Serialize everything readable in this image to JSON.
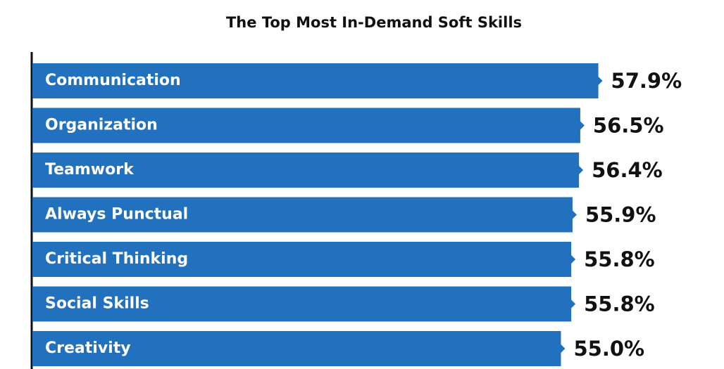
{
  "chart_data": {
    "type": "hbar",
    "title": "The Top Most In-Demand Soft Skills",
    "categories": [
      "Communication",
      "Organization",
      "Teamwork",
      "Always Punctual",
      "Critical Thinking",
      "Social Skills",
      "Creativity"
    ],
    "values": [
      57.9,
      56.5,
      56.4,
      55.9,
      55.8,
      55.8,
      55.0
    ],
    "value_labels": [
      "57.9%",
      "56.5%",
      "56.4%",
      "55.9%",
      "55.8%",
      "55.8%",
      "55.0%"
    ],
    "color": "#2271be",
    "xlim": [
      14,
      60
    ]
  }
}
